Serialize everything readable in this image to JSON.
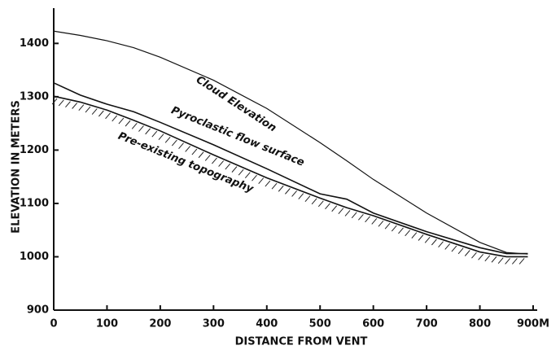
{
  "chart_data": {
    "type": "line",
    "xlabel": "DISTANCE FROM VENT",
    "ylabel": "ELEVATION IN METERS",
    "x": [
      0,
      50,
      100,
      150,
      200,
      300,
      400,
      500,
      550,
      600,
      700,
      800,
      850,
      890
    ],
    "series": [
      {
        "name": "Cloud Elevation",
        "color": "#111111",
        "values": [
          1423,
          1415,
          1405,
          1392,
          1374,
          1331,
          1278,
          1214,
          1180,
          1145,
          1082,
          1027,
          1008,
          1005
        ]
      },
      {
        "name": "Pyroclastic flow surface",
        "color": "#111111",
        "values": [
          1326,
          1303,
          1286,
          1272,
          1252,
          1210,
          1165,
          1118,
          1108,
          1082,
          1047,
          1017,
          1006,
          1006
        ]
      },
      {
        "name": "Pre-existing topography",
        "color": "#111111",
        "values": [
          1301,
          1290,
          1275,
          1256,
          1236,
          1191,
          1148,
          1110,
          1092,
          1077,
          1042,
          1009,
          1000,
          1000
        ]
      }
    ],
    "xlim": [
      0,
      900
    ],
    "ylim": [
      900,
      1460
    ],
    "xticks": [
      0,
      100,
      200,
      300,
      400,
      500,
      600,
      700,
      800,
      {
        "value": 900,
        "label": "900M"
      }
    ],
    "yticks": [
      900,
      1000,
      1100,
      1200,
      1300,
      1400
    ]
  }
}
